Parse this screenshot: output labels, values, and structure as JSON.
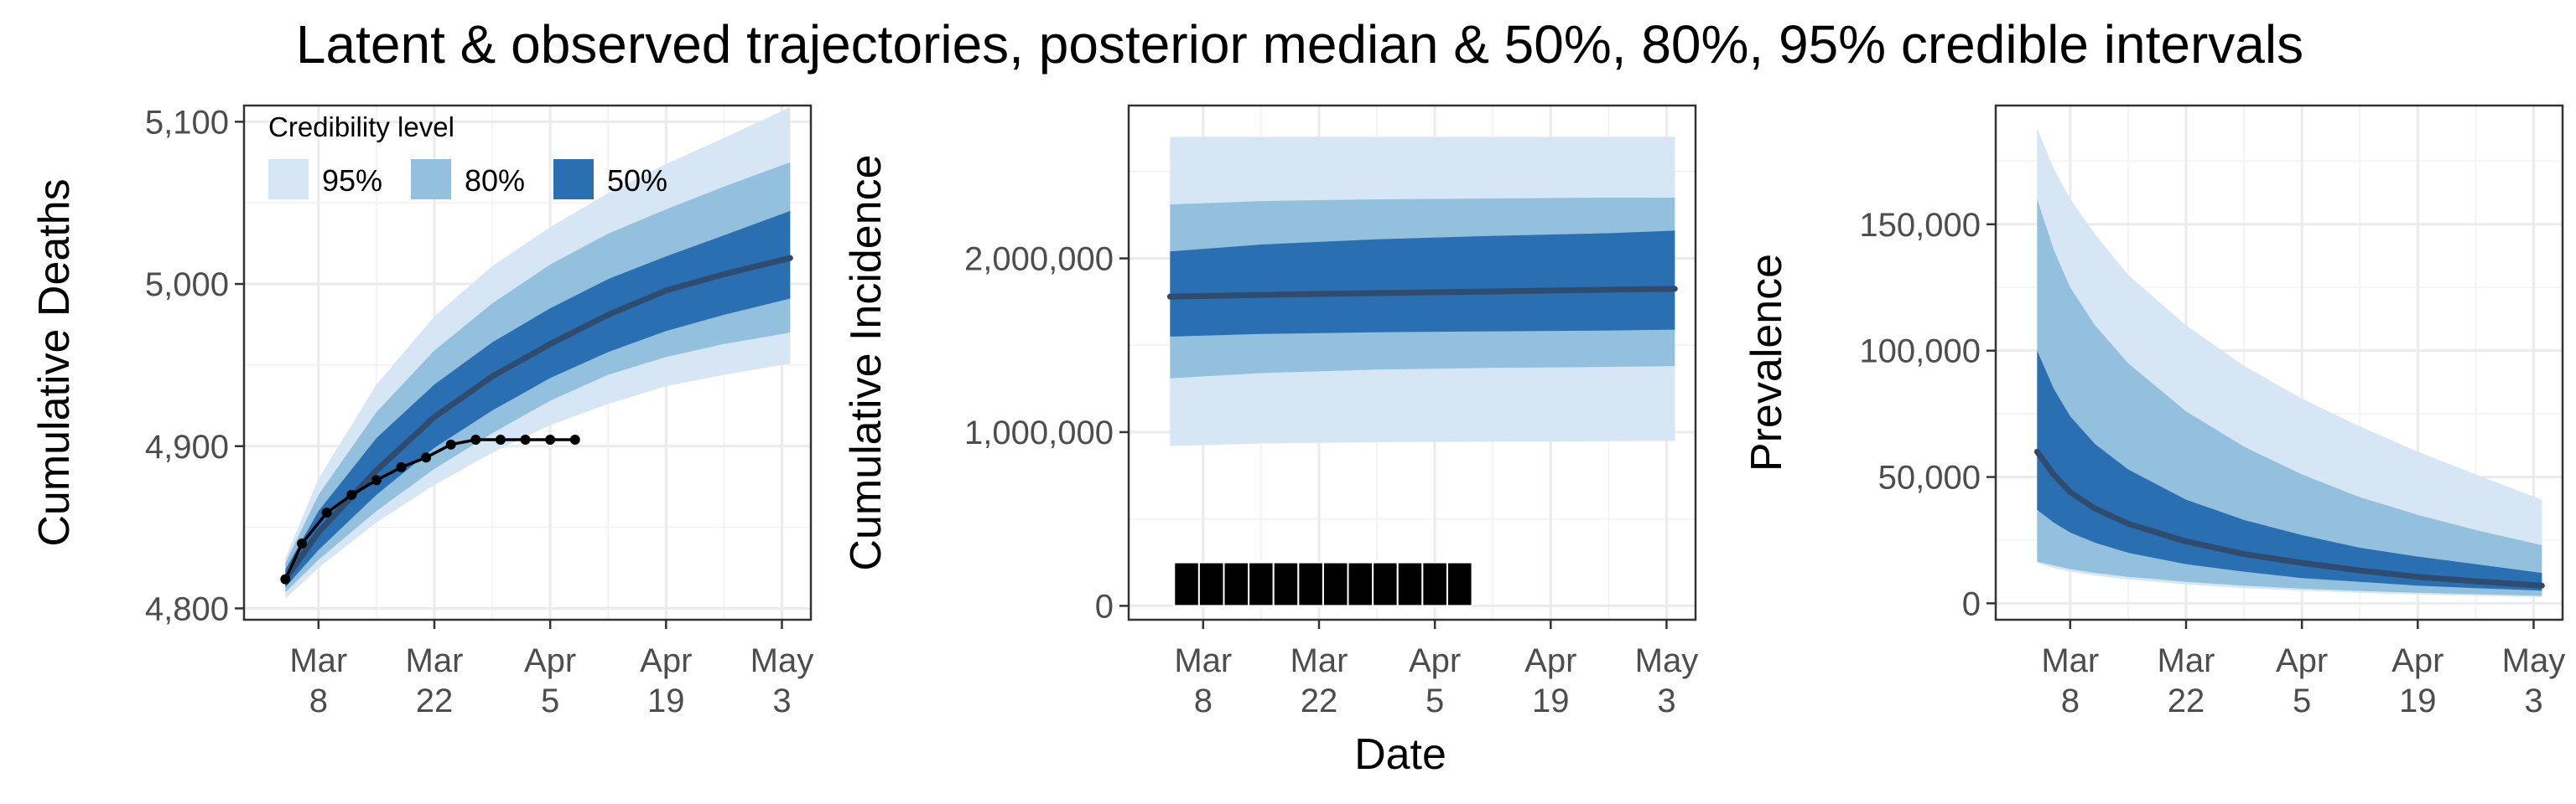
{
  "title": "Latent & observed trajectories, posterior median & 50%, 80%, 95% credible intervals",
  "colors": {
    "ci95": "#d6e6f4",
    "ci80": "#92c0dd",
    "ci50": "#2b6fb3",
    "median": "#2f4b6e",
    "observed": "#000000"
  },
  "x_axis": {
    "title": "Date",
    "ticks": [
      {
        "line1": "Mar",
        "line2": "8",
        "day": 7
      },
      {
        "line1": "Mar",
        "line2": "22",
        "day": 21
      },
      {
        "line1": "Apr",
        "line2": "5",
        "day": 35
      },
      {
        "line1": "Apr",
        "line2": "19",
        "day": 49
      },
      {
        "line1": "May",
        "line2": "3",
        "day": 63
      }
    ]
  },
  "legend": {
    "title": "Credibility level",
    "items": [
      {
        "label": "95%",
        "key": "ci95"
      },
      {
        "label": "80%",
        "key": "ci80"
      },
      {
        "label": "50%",
        "key": "ci50"
      }
    ]
  },
  "chart_data": [
    {
      "type": "area",
      "ylabel": "Cumulative Deaths",
      "xlim": [
        -2,
        66.5
      ],
      "ylim": [
        4793,
        5110
      ],
      "yticks": [
        4800,
        4900,
        5000,
        5100
      ],
      "ytick_labels": [
        "4,800",
        "4,900",
        "5,000",
        "5,100"
      ],
      "band_x": [
        3,
        7,
        14,
        21,
        28,
        35,
        42,
        49,
        56,
        64
      ],
      "ci95_lower": [
        4806,
        4825,
        4853,
        4876,
        4896,
        4913,
        4926,
        4937,
        4944,
        4951
      ],
      "ci95_upper": [
        4831,
        4880,
        4938,
        4980,
        5011,
        5035,
        5056,
        5074,
        5090,
        5109
      ],
      "ci80_lower": [
        4810,
        4830,
        4860,
        4886,
        4908,
        4928,
        4944,
        4955,
        4963,
        4970
      ],
      "ci80_upper": [
        4828,
        4870,
        4921,
        4959,
        4988,
        5012,
        5031,
        5046,
        5060,
        5075
      ],
      "ci50_lower": [
        4813,
        4836,
        4870,
        4899,
        4922,
        4942,
        4958,
        4971,
        4981,
        4991
      ],
      "ci50_upper": [
        4824,
        4860,
        4905,
        4938,
        4964,
        4985,
        5003,
        5017,
        5030,
        5045
      ],
      "median": [
        4818,
        4847,
        4885,
        4918,
        4943,
        4963,
        4981,
        4996,
        5006,
        5016
      ],
      "observed_x": [
        3,
        5,
        8,
        11,
        14,
        17,
        20,
        23,
        26,
        29,
        32,
        35,
        38
      ],
      "observed_y": [
        4818,
        4840,
        4859,
        4870,
        4879,
        4887,
        4893,
        4901,
        4904,
        4904,
        4904,
        4904,
        4904
      ],
      "observed_style": "line+points"
    },
    {
      "type": "area",
      "ylabel": "Cumulative Incidence",
      "xlim": [
        -2,
        66.5
      ],
      "ylim": [
        -80000,
        2880000
      ],
      "yticks": [
        0,
        1000000,
        2000000
      ],
      "ytick_labels": [
        "0",
        "1,000,000",
        "2,000,000"
      ],
      "band_x": [
        3,
        14,
        28,
        42,
        56,
        64
      ],
      "ci95_lower": [
        920000,
        935000,
        942000,
        945000,
        948000,
        950000
      ],
      "ci95_upper": [
        2700000,
        2700000,
        2700000,
        2700000,
        2700000,
        2700000
      ],
      "ci80_lower": [
        1310000,
        1340000,
        1360000,
        1370000,
        1375000,
        1380000
      ],
      "ci80_upper": [
        2310000,
        2330000,
        2340000,
        2345000,
        2350000,
        2350000
      ],
      "ci50_lower": [
        1550000,
        1565000,
        1575000,
        1580000,
        1585000,
        1590000
      ],
      "ci50_upper": [
        2040000,
        2080000,
        2110000,
        2130000,
        2145000,
        2160000
      ],
      "median": [
        1780000,
        1790000,
        1800000,
        1810000,
        1820000,
        1825000
      ],
      "observed_x": [
        5,
        8,
        11,
        14,
        17,
        20,
        23,
        26,
        29,
        32,
        35,
        38
      ],
      "observed_y": [
        250000,
        250000,
        250000,
        250000,
        250000,
        250000,
        250000,
        250000,
        250000,
        250000,
        250000,
        250000
      ],
      "observed_style": "bars"
    },
    {
      "type": "area",
      "ylabel": "Prevalence",
      "xlim": [
        -2,
        66.5
      ],
      "ylim": [
        -6500,
        197000
      ],
      "yticks": [
        0,
        50000,
        100000,
        150000
      ],
      "ytick_labels": [
        "0",
        "50,000",
        "100,000",
        "150,000"
      ],
      "band_x": [
        3,
        5,
        7,
        10,
        14,
        21,
        28,
        35,
        42,
        49,
        56,
        64
      ],
      "ci95_lower": [
        16000,
        14000,
        12500,
        11000,
        9500,
        7500,
        6000,
        5000,
        4200,
        3500,
        3000,
        2500
      ],
      "ci95_upper": [
        188000,
        172000,
        160000,
        146000,
        130000,
        110000,
        94000,
        81000,
        70000,
        60000,
        51000,
        41000
      ],
      "ci80_lower": [
        16500,
        15000,
        13500,
        12000,
        10500,
        8500,
        7000,
        5800,
        4900,
        4200,
        3600,
        3000
      ],
      "ci80_upper": [
        160000,
        140000,
        125000,
        110000,
        95000,
        76000,
        62000,
        51000,
        42000,
        35000,
        29000,
        23000
      ],
      "ci50_lower": [
        37000,
        32000,
        28000,
        24000,
        20000,
        15500,
        12500,
        10000,
        8500,
        7000,
        6000,
        5000
      ],
      "ci50_upper": [
        100000,
        85000,
        74000,
        63000,
        53000,
        41000,
        33000,
        27000,
        22000,
        18500,
        15500,
        12000
      ],
      "median": [
        60000,
        51000,
        44000,
        37500,
        31500,
        24500,
        19500,
        16000,
        13000,
        10500,
        8700,
        7000
      ],
      "observed_x": [],
      "observed_y": [],
      "observed_style": "none"
    }
  ]
}
